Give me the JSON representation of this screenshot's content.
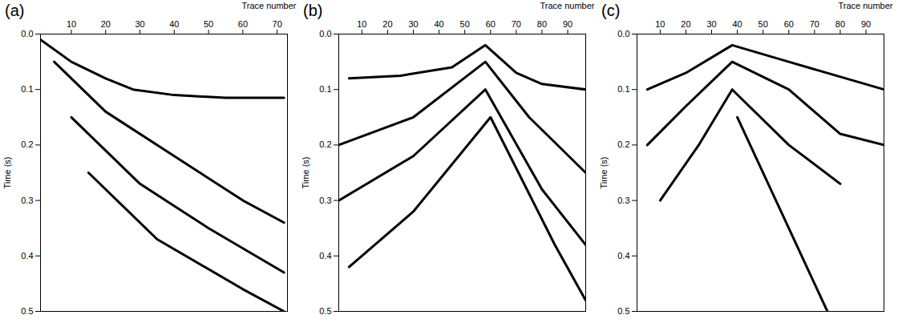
{
  "chart_data": [
    {
      "type": "line",
      "title": "(a)",
      "x_label": "Trace number",
      "y_label": "Time (s)",
      "xlim": [
        1,
        73
      ],
      "xticks": [
        10,
        20,
        30,
        40,
        50,
        60,
        70
      ],
      "ylim": [
        0,
        0.5
      ],
      "yticks": [
        {
          "value": 0,
          "label": "0.0"
        },
        {
          "value": 0.1,
          "label": "0.1"
        },
        {
          "value": 0.2,
          "label": "0.2"
        },
        {
          "value": 0.3,
          "label": "0.3"
        },
        {
          "value": 0.4,
          "label": "0.4"
        },
        {
          "value": 0.5,
          "label": "0.5"
        }
      ],
      "grid": false,
      "series": [
        {
          "color": "#000000",
          "x": [
            1,
            10,
            20,
            28,
            40,
            55,
            72
          ],
          "values": [
            0.01,
            0.05,
            0.08,
            0.1,
            0.11,
            0.115,
            0.115
          ]
        },
        {
          "color": "#000000",
          "x": [
            5,
            20,
            40,
            60,
            72
          ],
          "values": [
            0.05,
            0.14,
            0.22,
            0.3,
            0.34
          ]
        },
        {
          "color": "#000000",
          "x": [
            10,
            30,
            50,
            72
          ],
          "values": [
            0.15,
            0.27,
            0.35,
            0.43
          ]
        },
        {
          "color": "#000000",
          "x": [
            15,
            35,
            60,
            72
          ],
          "values": [
            0.25,
            0.37,
            0.46,
            0.5
          ]
        }
      ]
    },
    {
      "type": "line",
      "title": "(b)",
      "x_label": "Trace number",
      "y_label": "Time (s)",
      "xlim": [
        1,
        97
      ],
      "xticks": [
        10,
        20,
        30,
        40,
        50,
        60,
        70,
        80,
        90
      ],
      "ylim": [
        0,
        0.5
      ],
      "yticks": [
        {
          "value": 0,
          "label": "0.0"
        },
        {
          "value": 0.1,
          "label": "0.1"
        },
        {
          "value": 0.2,
          "label": "0.2"
        },
        {
          "value": 0.3,
          "label": "0.3"
        },
        {
          "value": 0.4,
          "label": "0.4"
        },
        {
          "value": 0.5,
          "label": "0.5"
        }
      ],
      "grid": false,
      "series": [
        {
          "color": "#000000",
          "x": [
            5,
            25,
            45,
            58,
            70,
            80,
            97
          ],
          "values": [
            0.08,
            0.075,
            0.06,
            0.02,
            0.07,
            0.09,
            0.1
          ]
        },
        {
          "color": "#000000",
          "x": [
            1,
            30,
            58,
            75,
            97
          ],
          "values": [
            0.2,
            0.15,
            0.05,
            0.15,
            0.25
          ]
        },
        {
          "color": "#000000",
          "x": [
            1,
            30,
            58,
            80,
            97
          ],
          "values": [
            0.3,
            0.22,
            0.1,
            0.28,
            0.38
          ]
        },
        {
          "color": "#000000",
          "x": [
            5,
            30,
            60,
            85,
            97
          ],
          "values": [
            0.42,
            0.32,
            0.15,
            0.38,
            0.48
          ]
        }
      ]
    },
    {
      "type": "line",
      "title": "(c)",
      "x_label": "Trace number",
      "y_label": "Time (s)",
      "xlim": [
        1,
        97
      ],
      "xticks": [
        10,
        20,
        30,
        40,
        50,
        60,
        70,
        80,
        90
      ],
      "ylim": [
        0,
        0.5
      ],
      "yticks": [
        {
          "value": 0,
          "label": "0.0"
        },
        {
          "value": 0.1,
          "label": "0.1"
        },
        {
          "value": 0.2,
          "label": "0.2"
        },
        {
          "value": 0.3,
          "label": "0.3"
        },
        {
          "value": 0.4,
          "label": "0.4"
        },
        {
          "value": 0.5,
          "label": "0.5"
        }
      ],
      "grid": false,
      "series": [
        {
          "color": "#000000",
          "x": [
            5,
            20,
            38,
            60,
            97
          ],
          "values": [
            0.1,
            0.07,
            0.02,
            0.05,
            0.1
          ]
        },
        {
          "color": "#000000",
          "x": [
            5,
            20,
            38,
            60,
            80,
            97
          ],
          "values": [
            0.2,
            0.13,
            0.05,
            0.1,
            0.18,
            0.2
          ]
        },
        {
          "color": "#000000",
          "x": [
            10,
            25,
            38,
            60,
            80
          ],
          "values": [
            0.3,
            0.2,
            0.1,
            0.2,
            0.27
          ]
        },
        {
          "color": "#000000",
          "x": [
            40,
            55,
            70,
            75
          ],
          "values": [
            0.15,
            0.3,
            0.45,
            0.5
          ]
        }
      ]
    }
  ]
}
